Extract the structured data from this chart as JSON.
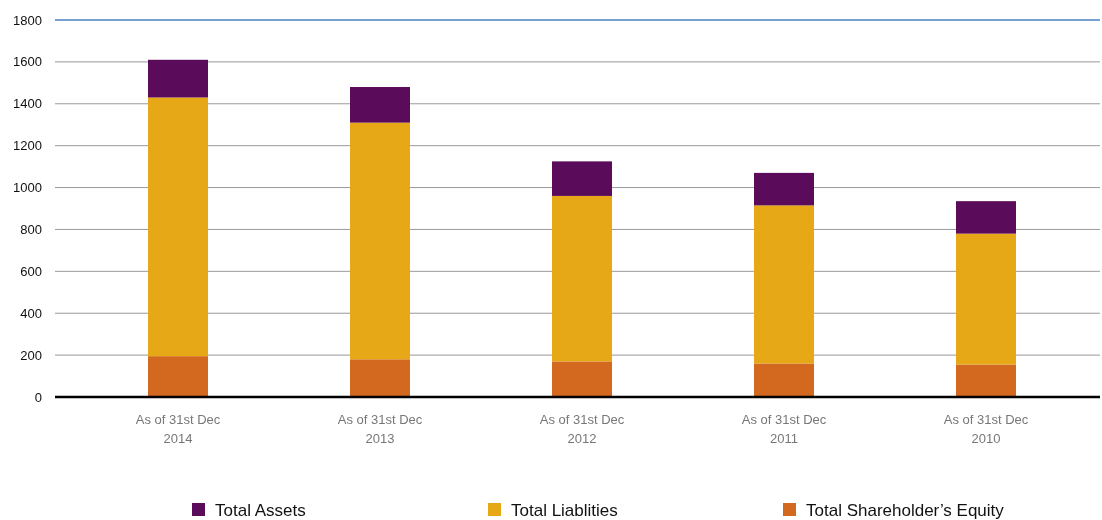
{
  "chart_data": {
    "type": "bar",
    "stacked": true,
    "categories": [
      "As of 31st Dec\n2014",
      "As of 31st Dec\n2013",
      "As of 31st Dec\n2012",
      "As of 31st Dec\n2011",
      "As of 31st Dec\n2010"
    ],
    "series": [
      {
        "name": "Total Shareholder’s Equity",
        "color": "#d2691e",
        "values": [
          195,
          180,
          170,
          160,
          155
        ]
      },
      {
        "name": "Total Liablities",
        "color": "#e6a817",
        "values": [
          1235,
          1130,
          790,
          755,
          625
        ]
      },
      {
        "name": "Total Assets",
        "color": "#5a0b5a",
        "values": [
          180,
          170,
          165,
          155,
          155
        ]
      }
    ],
    "ylim": [
      0,
      1800
    ],
    "yticks": [
      0,
      200,
      400,
      600,
      800,
      1000,
      1200,
      1400,
      1600,
      1800
    ],
    "grid": "y",
    "legend": "bottom"
  }
}
